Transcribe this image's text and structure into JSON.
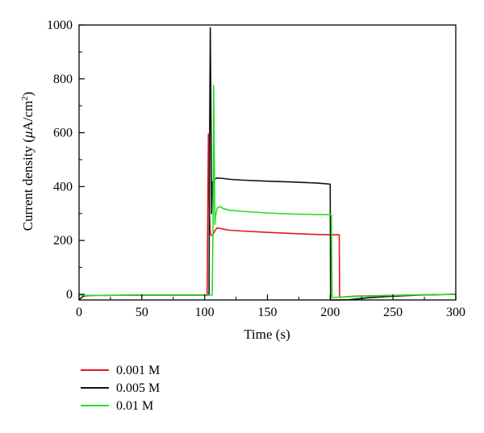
{
  "chart_data": {
    "type": "line",
    "title": "",
    "xlabel": "Time (s)",
    "ylabel_prefix": "Current density (",
    "ylabel_mu": "μ",
    "ylabel_unit": "A/cm",
    "ylabel_sup": "2",
    "ylabel_suffix": ")",
    "xlim": [
      0,
      300
    ],
    "ylim": [
      -20,
      1000
    ],
    "xticks": [
      0,
      50,
      100,
      150,
      200,
      250,
      300
    ],
    "yticks": [
      0,
      200,
      400,
      600,
      800,
      1000
    ],
    "grid": false,
    "legend_position": "bottom-left, below plot",
    "series": [
      {
        "name": "0.001 M",
        "color": "#e8141c",
        "x": [
          0,
          2,
          5,
          10,
          50,
          102,
          102.5,
          103,
          103.5,
          104,
          104.5,
          105,
          106,
          107,
          108,
          110,
          115,
          120,
          130,
          150,
          170,
          190,
          200,
          205,
          207.2,
          207.5,
          208,
          212,
          220,
          250,
          270,
          300
        ],
        "y": [
          0,
          -3,
          -4,
          -4,
          -3,
          -3,
          300,
          595,
          400,
          280,
          230,
          220,
          218,
          225,
          235,
          247,
          242,
          238,
          235,
          230,
          226,
          222,
          221,
          221,
          221,
          -8,
          -12,
          -9,
          -7,
          -4,
          -2,
          0
        ]
      },
      {
        "name": "0.005 M",
        "color": "#111111",
        "x": [
          0,
          2,
          4,
          10,
          50,
          103.5,
          104,
          104.5,
          105,
          105.5,
          106,
          107,
          108,
          110,
          115,
          120,
          130,
          150,
          170,
          190,
          195,
          200,
          200.3,
          201,
          205,
          215,
          230,
          250,
          270,
          300
        ],
        "y": [
          -20,
          -12,
          -6,
          -4,
          -3,
          -3,
          600,
          990,
          700,
          300,
          410,
          425,
          428,
          432,
          430,
          427,
          424,
          420,
          417,
          413,
          411,
          409,
          -25,
          -28,
          -25,
          -20,
          -13,
          -7,
          -3,
          0
        ]
      },
      {
        "name": "0.01 M",
        "color": "#22e022",
        "x": [
          0,
          2,
          5,
          10,
          50,
          106,
          106.8,
          107.2,
          107.7,
          108.2,
          108.7,
          109.5,
          110,
          112,
          115,
          120,
          130,
          150,
          170,
          190,
          200,
          201,
          201.5,
          202,
          210,
          230,
          250,
          270,
          300
        ],
        "y": [
          0,
          -3,
          -4,
          -4,
          -3,
          -3,
          300,
          775,
          500,
          260,
          290,
          310,
          320,
          326,
          318,
          312,
          308,
          302,
          298,
          296,
          296,
          294,
          -10,
          -12,
          -10,
          -7,
          -4,
          -2,
          0
        ]
      }
    ]
  }
}
